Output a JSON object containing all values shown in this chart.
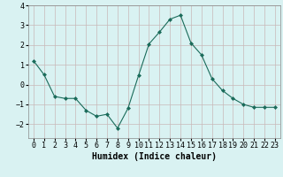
{
  "x": [
    0,
    1,
    2,
    3,
    4,
    5,
    6,
    7,
    8,
    9,
    10,
    11,
    12,
    13,
    14,
    15,
    16,
    17,
    18,
    19,
    20,
    21,
    22,
    23
  ],
  "y": [
    1.2,
    0.5,
    -0.6,
    -0.7,
    -0.7,
    -1.3,
    -1.6,
    -1.5,
    -2.2,
    -1.2,
    0.45,
    2.05,
    2.65,
    3.3,
    3.5,
    2.1,
    1.5,
    0.3,
    -0.3,
    -0.7,
    -1.0,
    -1.15,
    -1.15,
    -1.15
  ],
  "xlabel": "Humidex (Indice chaleur)",
  "ylim": [
    -2.7,
    4.0
  ],
  "xlim": [
    -0.5,
    23.5
  ],
  "line_color": "#1a6b5a",
  "marker_color": "#1a6b5a",
  "bg_color": "#d9f2f2",
  "grid_color": "#c8b8b8",
  "xlabel_fontsize": 7,
  "tick_fontsize": 6
}
